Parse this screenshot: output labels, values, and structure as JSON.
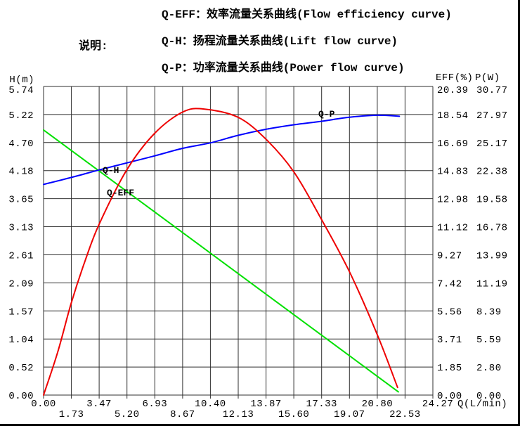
{
  "window": {
    "background": "#ffffff"
  },
  "legend": {
    "title": "说明:",
    "items": [
      "Q-EFF：效率流量关系曲线(Flow efficiency curve)",
      "Q-H：扬程流量关系曲线(Lift flow curve)",
      "Q-P：功率流量关系曲线(Power flow curve)"
    ]
  },
  "chart_data": {
    "type": "line",
    "grid": {
      "visible": true,
      "color": "#2f2f2f"
    },
    "x_axis": {
      "title": "Q(L/min)",
      "min": 0,
      "max": 24.27,
      "ticks": [
        "0.00",
        "1.73",
        "3.47",
        "5.20",
        "6.93",
        "8.67",
        "10.40",
        "12.13",
        "13.87",
        "15.60",
        "17.33",
        "19.07",
        "20.80",
        "22.53",
        "24.27"
      ]
    },
    "y_axis_left": {
      "title": "H(m)",
      "min": 0,
      "max": 5.74,
      "ticks": [
        "5.74",
        "5.22",
        "4.70",
        "4.18",
        "3.65",
        "3.13",
        "2.61",
        "2.09",
        "1.57",
        "1.04",
        "0.52",
        "0.00"
      ]
    },
    "y_axis_right_eff": {
      "title": "EFF(%)",
      "min": 0,
      "max": 20.39,
      "ticks": [
        "20.39",
        "18.54",
        "16.69",
        "14.83",
        "12.98",
        "11.12",
        "9.27",
        "7.42",
        "5.56",
        "3.71",
        "1.85",
        "0.00"
      ]
    },
    "y_axis_right_p": {
      "title": "P(W)",
      "min": 0,
      "max": 30.77,
      "ticks": [
        "30.77",
        "27.97",
        "25.17",
        "22.38",
        "19.58",
        "16.78",
        "13.99",
        "11.19",
        "8.39",
        "5.59",
        "2.80",
        "0.00"
      ]
    },
    "series": [
      {
        "name": "q_h",
        "label": "Q-H",
        "axis": "h",
        "color": "#00e000",
        "points": [
          [
            0,
            4.93
          ],
          [
            22.12,
            0.06
          ]
        ]
      },
      {
        "name": "q_p",
        "label": "Q-P",
        "axis": "p",
        "color": "#0000ff",
        "points": [
          [
            0,
            21.0
          ],
          [
            1.73,
            21.7
          ],
          [
            3.47,
            22.45
          ],
          [
            5.2,
            23.15
          ],
          [
            6.93,
            23.85
          ],
          [
            8.67,
            24.6
          ],
          [
            10.4,
            25.15
          ],
          [
            12.13,
            25.9
          ],
          [
            13.87,
            26.5
          ],
          [
            15.6,
            26.95
          ],
          [
            17.33,
            27.3
          ],
          [
            19.07,
            27.7
          ],
          [
            20.8,
            27.9
          ],
          [
            22.18,
            27.8
          ]
        ]
      },
      {
        "name": "q_eff",
        "label": "Q-EFF",
        "axis": "eff",
        "color": "#ee0000",
        "points": [
          [
            0,
            0
          ],
          [
            0.9,
            2.9
          ],
          [
            1.73,
            6.1
          ],
          [
            2.6,
            8.9
          ],
          [
            3.47,
            11.3
          ],
          [
            5.2,
            14.9
          ],
          [
            6.93,
            17.3
          ],
          [
            8.67,
            18.7
          ],
          [
            10.0,
            18.9
          ],
          [
            12.13,
            18.35
          ],
          [
            13.87,
            16.9
          ],
          [
            15.6,
            14.75
          ],
          [
            17.33,
            11.6
          ],
          [
            19.07,
            8.15
          ],
          [
            20.8,
            4.0
          ],
          [
            22.07,
            0.5
          ]
        ]
      }
    ]
  }
}
